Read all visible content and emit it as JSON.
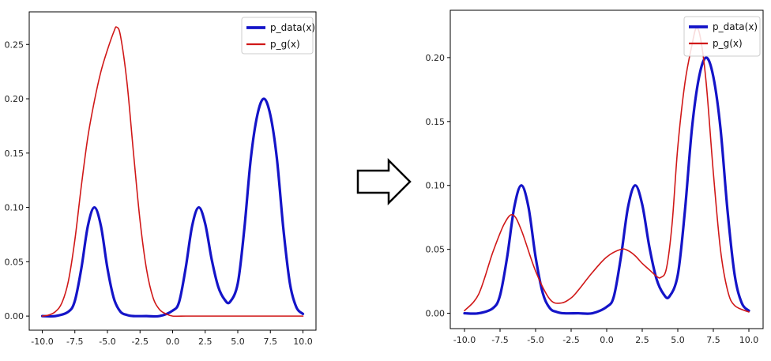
{
  "chart_data": [
    {
      "type": "line",
      "title": "",
      "xlabel": "",
      "ylabel": "",
      "xlim": [
        -11,
        11
      ],
      "ylim": [
        -0.013,
        0.28
      ],
      "xticks": [
        -10.0,
        -7.5,
        -5.0,
        -2.5,
        0.0,
        2.5,
        5.0,
        7.5,
        10.0
      ],
      "xtick_labels": [
        "-10.0",
        "-7.5",
        "-5.0",
        "-2.5",
        "0.0",
        "2.5",
        "5.0",
        "7.5",
        "10.0"
      ],
      "yticks": [
        0.0,
        0.05,
        0.1,
        0.15,
        0.2,
        0.25
      ],
      "ytick_labels": [
        "0.00",
        "0.05",
        "0.10",
        "0.15",
        "0.20",
        "0.25"
      ],
      "legend_position": "top-right",
      "series": [
        {
          "name": "p_data(x)",
          "color": "#1414c8",
          "x": [
            -10,
            -9,
            -8,
            -7.5,
            -7,
            -6.5,
            -6,
            -5.5,
            -5,
            -4.5,
            -4,
            -3.5,
            -3,
            -2,
            -1,
            0,
            0.5,
            1,
            1.5,
            2,
            2.5,
            3,
            3.5,
            4,
            4.4,
            5,
            5.5,
            6,
            6.5,
            7,
            7.5,
            8,
            8.5,
            9,
            9.5,
            10
          ],
          "y": [
            0.0,
            0.0,
            0.004,
            0.014,
            0.044,
            0.083,
            0.1,
            0.083,
            0.044,
            0.016,
            0.004,
            0.001,
            0.0,
            0.0,
            0.0,
            0.005,
            0.013,
            0.044,
            0.083,
            0.1,
            0.085,
            0.052,
            0.027,
            0.015,
            0.013,
            0.03,
            0.08,
            0.145,
            0.185,
            0.2,
            0.185,
            0.145,
            0.08,
            0.03,
            0.008,
            0.002
          ]
        },
        {
          "name": "p_g(x)",
          "color": "#d01818",
          "x": [
            -10,
            -9.5,
            -9,
            -8.5,
            -8,
            -7.5,
            -7,
            -6.5,
            -6,
            -5.5,
            -5,
            -4.5,
            -4.3,
            -4,
            -3.5,
            -3,
            -2.5,
            -2,
            -1.5,
            -1,
            -0.5,
            0,
            1,
            2,
            3,
            4,
            5,
            6,
            7,
            8,
            9,
            10
          ],
          "y": [
            0.0,
            0.001,
            0.004,
            0.012,
            0.032,
            0.07,
            0.12,
            0.165,
            0.198,
            0.225,
            0.245,
            0.262,
            0.266,
            0.258,
            0.215,
            0.15,
            0.088,
            0.043,
            0.017,
            0.006,
            0.002,
            0.0,
            0.0,
            0.0,
            0.0,
            0.0,
            0.0,
            0.0,
            0.0,
            0.0,
            0.0,
            0.0
          ]
        }
      ]
    },
    {
      "type": "line",
      "title": "",
      "xlabel": "",
      "ylabel": "",
      "xlim": [
        -11,
        11
      ],
      "ylim": [
        -0.012,
        0.237
      ],
      "xticks": [
        -10.0,
        -7.5,
        -5.0,
        -2.5,
        0.0,
        2.5,
        5.0,
        7.5,
        10.0
      ],
      "xtick_labels": [
        "-10.0",
        "-7.5",
        "-5.0",
        "-2.5",
        "0.0",
        "2.5",
        "5.0",
        "7.5",
        "10.0"
      ],
      "yticks": [
        0.0,
        0.05,
        0.1,
        0.15,
        0.2
      ],
      "ytick_labels": [
        "0.00",
        "0.05",
        "0.10",
        "0.15",
        "0.20"
      ],
      "legend_position": "top-right",
      "series": [
        {
          "name": "p_data(x)",
          "color": "#1414c8",
          "x": [
            -10,
            -9,
            -8,
            -7.5,
            -7,
            -6.5,
            -6,
            -5.5,
            -5,
            -4.5,
            -4,
            -3.5,
            -3,
            -2,
            -1,
            0,
            0.5,
            1,
            1.5,
            2,
            2.5,
            3,
            3.5,
            4,
            4.4,
            5,
            5.5,
            6,
            6.5,
            7,
            7.5,
            8,
            8.5,
            9,
            9.5,
            10
          ],
          "y": [
            0.0,
            0.0,
            0.004,
            0.014,
            0.044,
            0.083,
            0.1,
            0.083,
            0.044,
            0.016,
            0.004,
            0.001,
            0.0,
            0.0,
            0.0,
            0.005,
            0.013,
            0.044,
            0.083,
            0.1,
            0.085,
            0.052,
            0.027,
            0.015,
            0.013,
            0.03,
            0.08,
            0.145,
            0.185,
            0.2,
            0.185,
            0.145,
            0.08,
            0.03,
            0.008,
            0.002
          ]
        },
        {
          "name": "p_g(x)",
          "color": "#d01818",
          "x": [
            -10,
            -9,
            -8,
            -7.2,
            -6.6,
            -6,
            -5,
            -4,
            -3.2,
            -2.5,
            -2,
            -1,
            0,
            1,
            1.5,
            2,
            2.5,
            3,
            3.5,
            3.8,
            4.2,
            4.6,
            5,
            5.5,
            6,
            6.3,
            6.6,
            7,
            7.5,
            8,
            8.5,
            9,
            10
          ],
          "y": [
            0.002,
            0.015,
            0.048,
            0.07,
            0.077,
            0.065,
            0.033,
            0.011,
            0.008,
            0.012,
            0.018,
            0.032,
            0.044,
            0.05,
            0.049,
            0.045,
            0.039,
            0.034,
            0.029,
            0.028,
            0.035,
            0.07,
            0.13,
            0.18,
            0.21,
            0.223,
            0.215,
            0.18,
            0.11,
            0.05,
            0.018,
            0.006,
            0.001
          ]
        }
      ]
    }
  ],
  "arrow": {
    "name": "transition-arrow"
  }
}
